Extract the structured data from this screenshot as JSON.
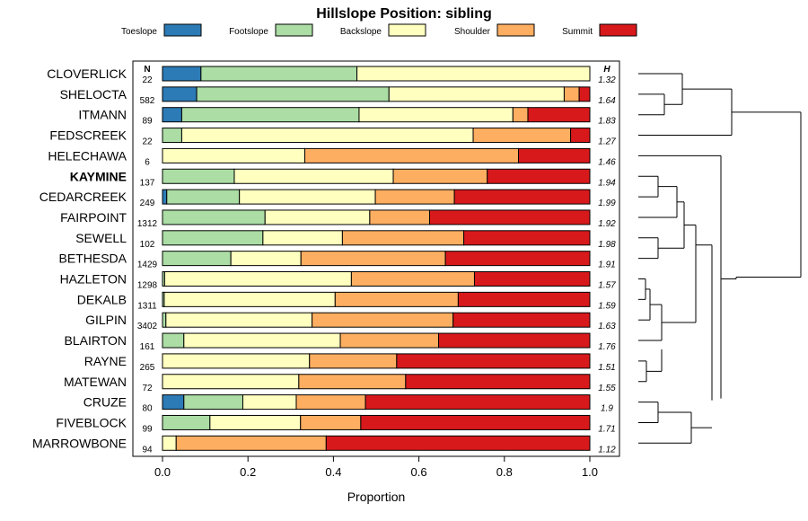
{
  "chart_data": {
    "type": "bar",
    "orientation": "horizontal",
    "stacked": true,
    "title": "Hillslope Position: sibling",
    "xlabel": "Proportion",
    "ylabel": "",
    "xlim": [
      0,
      1
    ],
    "xticks": [
      0,
      0.2,
      0.4,
      0.6,
      0.8,
      1
    ],
    "xtick_labels": [
      "0.0",
      "0.2",
      "0.4",
      "0.6",
      "0.8",
      "1.0"
    ],
    "n_header": "N",
    "h_header": "H",
    "legend_position": "top",
    "highlight": "KAYMINE",
    "series": [
      {
        "name": "Toeslope",
        "color": "#2c7bb6"
      },
      {
        "name": "Footslope",
        "color": "#abdda4"
      },
      {
        "name": "Backslope",
        "color": "#ffffbf"
      },
      {
        "name": "Shoulder",
        "color": "#fdae61"
      },
      {
        "name": "Summit",
        "color": "#d7191c"
      }
    ],
    "rows": [
      {
        "name": "CLOVERLICK",
        "n": "22",
        "h": "1.32",
        "values": [
          0.09,
          0.365,
          0.545,
          0,
          0
        ]
      },
      {
        "name": "SHELOCTA",
        "n": "582",
        "h": "1.64",
        "values": [
          0.08,
          0.45,
          0.41,
          0.035,
          0.025
        ]
      },
      {
        "name": "ITMANN",
        "n": "89",
        "h": "1.83",
        "values": [
          0.045,
          0.415,
          0.36,
          0.035,
          0.145
        ]
      },
      {
        "name": "FEDSCREEK",
        "n": "22",
        "h": "1.27",
        "values": [
          0,
          0.045,
          0.682,
          0.228,
          0.045
        ]
      },
      {
        "name": "HELECHAWA",
        "n": "6",
        "h": "1.46",
        "values": [
          0,
          0,
          0.333,
          0.5,
          0.167
        ]
      },
      {
        "name": "KAYMINE",
        "n": "137",
        "h": "1.94",
        "values": [
          0,
          0.168,
          0.372,
          0.22,
          0.24
        ]
      },
      {
        "name": "CEDARCREEK",
        "n": "249",
        "h": "1.99",
        "values": [
          0.01,
          0.17,
          0.318,
          0.185,
          0.317
        ]
      },
      {
        "name": "FAIRPOINT",
        "n": "1312",
        "h": "1.92",
        "values": [
          0,
          0.24,
          0.245,
          0.14,
          0.375
        ]
      },
      {
        "name": "SEWELL",
        "n": "102",
        "h": "1.98",
        "values": [
          0,
          0.235,
          0.186,
          0.284,
          0.295
        ]
      },
      {
        "name": "BETHESDA",
        "n": "1429",
        "h": "1.91",
        "values": [
          0,
          0.16,
          0.164,
          0.338,
          0.338
        ]
      },
      {
        "name": "HAZLETON",
        "n": "1298",
        "h": "1.57",
        "values": [
          0,
          0.005,
          0.437,
          0.288,
          0.27
        ]
      },
      {
        "name": "DEKALB",
        "n": "1311",
        "h": "1.59",
        "values": [
          0,
          0.004,
          0.4,
          0.288,
          0.308
        ]
      },
      {
        "name": "GILPIN",
        "n": "3402",
        "h": "1.63",
        "values": [
          0,
          0.008,
          0.342,
          0.33,
          0.32
        ]
      },
      {
        "name": "BLAIRTON",
        "n": "161",
        "h": "1.76",
        "values": [
          0,
          0.05,
          0.366,
          0.23,
          0.354
        ]
      },
      {
        "name": "RAYNE",
        "n": "265",
        "h": "1.51",
        "values": [
          0,
          0,
          0.344,
          0.204,
          0.452
        ]
      },
      {
        "name": "MATEWAN",
        "n": "72",
        "h": "1.55",
        "values": [
          0,
          0,
          0.319,
          0.25,
          0.431
        ]
      },
      {
        "name": "CRUZE",
        "n": "80",
        "h": "1.9",
        "values": [
          0.05,
          0.138,
          0.125,
          0.162,
          0.525
        ]
      },
      {
        "name": "FIVEBLOCK",
        "n": "99",
        "h": "1.71",
        "values": [
          0,
          0.111,
          0.212,
          0.141,
          0.536
        ]
      },
      {
        "name": "MARROWBONE",
        "n": "94",
        "h": "1.12",
        "values": [
          0,
          0,
          0.032,
          0.351,
          0.617
        ]
      }
    ]
  }
}
